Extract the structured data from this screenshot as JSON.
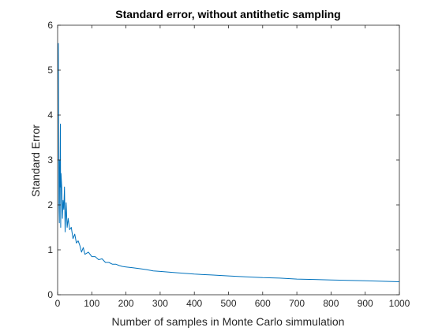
{
  "chart_data": {
    "type": "line",
    "title": "Standard error, without antithetic sampling",
    "xlabel": "Number of samples in Monte Carlo simmulation",
    "ylabel": "Standard Error",
    "xlim": [
      0,
      1000
    ],
    "ylim": [
      0,
      6
    ],
    "xticks": [
      0,
      100,
      200,
      300,
      400,
      500,
      600,
      700,
      800,
      900,
      1000
    ],
    "yticks": [
      0,
      1,
      2,
      3,
      4,
      5,
      6
    ],
    "xtick_labels": [
      "0",
      "100",
      "200",
      "300",
      "400",
      "500",
      "600",
      "700",
      "800",
      "900",
      "1000"
    ],
    "ytick_labels": [
      "0",
      "1",
      "2",
      "3",
      "4",
      "5",
      "6"
    ],
    "grid": false,
    "box": true,
    "line_color": "#0072BD",
    "series": [
      {
        "x": [
          2,
          3,
          4,
          5,
          6,
          7,
          8,
          9,
          10,
          12,
          14,
          16,
          18,
          20,
          22,
          25,
          28,
          31,
          35,
          40,
          45,
          50,
          55,
          60,
          65,
          70,
          75,
          80,
          90,
          100,
          110,
          120,
          130,
          140,
          150,
          160,
          170,
          180,
          190,
          200,
          220,
          240,
          260,
          280,
          300,
          350,
          400,
          450,
          500,
          550,
          600,
          650,
          700,
          750,
          800,
          850,
          900,
          950,
          1000
        ],
        "y": [
          5.6,
          4.2,
          2.0,
          1.6,
          3.0,
          2.4,
          3.8,
          1.5,
          2.7,
          2.4,
          1.7,
          2.1,
          1.9,
          2.4,
          1.4,
          2.05,
          1.5,
          1.7,
          1.45,
          1.5,
          1.25,
          1.35,
          1.15,
          1.2,
          1.1,
          0.95,
          1.05,
          0.9,
          0.95,
          0.85,
          0.85,
          0.78,
          0.8,
          0.72,
          0.72,
          0.68,
          0.68,
          0.65,
          0.63,
          0.62,
          0.6,
          0.58,
          0.56,
          0.53,
          0.52,
          0.49,
          0.46,
          0.44,
          0.42,
          0.4,
          0.38,
          0.37,
          0.35,
          0.34,
          0.33,
          0.32,
          0.31,
          0.3,
          0.29
        ]
      }
    ]
  }
}
